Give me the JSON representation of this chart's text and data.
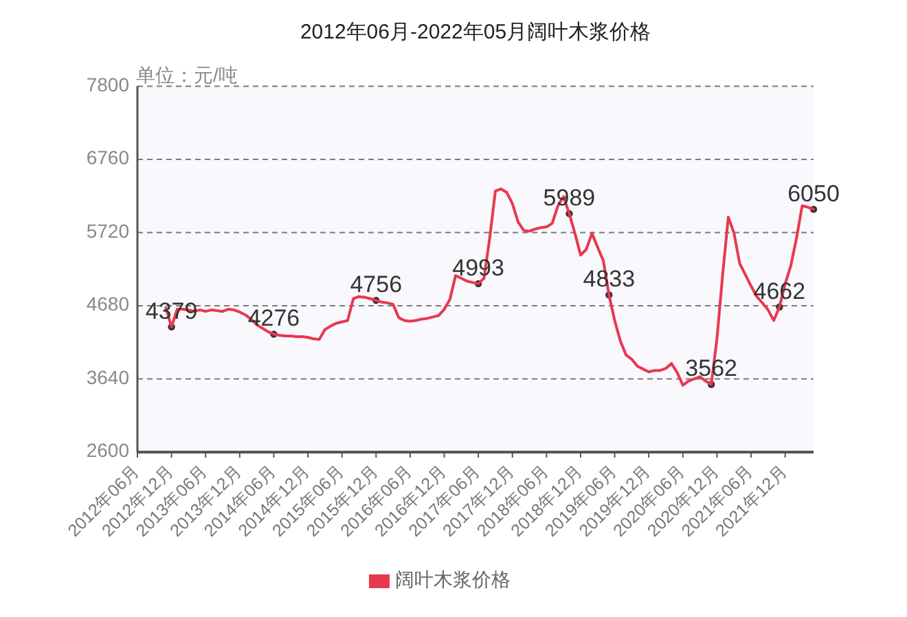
{
  "chart_data": {
    "type": "line",
    "title": "2012年06月-2022年05月阔叶木浆价格",
    "ylabel": "单位：元/吨",
    "categories": [
      "2012年06月",
      null,
      null,
      null,
      null,
      null,
      "2012年12月",
      null,
      null,
      null,
      null,
      null,
      "2013年06月",
      null,
      null,
      null,
      null,
      null,
      "2013年12月",
      null,
      null,
      null,
      null,
      null,
      "2014年06月",
      null,
      null,
      null,
      null,
      null,
      "2014年12月",
      null,
      null,
      null,
      null,
      null,
      "2015年06月",
      null,
      null,
      null,
      null,
      null,
      "2015年12月",
      null,
      null,
      null,
      null,
      null,
      "2016年06月",
      null,
      null,
      null,
      null,
      null,
      "2016年12月",
      null,
      null,
      null,
      null,
      null,
      "2017年06月",
      null,
      null,
      null,
      null,
      null,
      "2017年12月",
      null,
      null,
      null,
      null,
      null,
      "2018年06月",
      null,
      null,
      null,
      null,
      null,
      "2018年12月",
      null,
      null,
      null,
      null,
      null,
      "2019年06月",
      null,
      null,
      null,
      null,
      null,
      "2019年12月",
      null,
      null,
      null,
      null,
      null,
      "2020年06月",
      null,
      null,
      null,
      null,
      null,
      "2020年12月",
      null,
      null,
      null,
      null,
      null,
      "2021年06月",
      null,
      null,
      null,
      null,
      null,
      "2021年12月",
      null,
      null,
      null,
      null,
      null
    ],
    "series": [
      {
        "name": "阔叶木浆价格",
        "color": "#e8384f",
        "values": [
          null,
          null,
          null,
          null,
          null,
          4650,
          4379,
          4630,
          4630,
          4620,
          4600,
          4620,
          4600,
          4620,
          4610,
          4600,
          4630,
          4620,
          4590,
          4550,
          4490,
          4410,
          4360,
          4310,
          4276,
          4260,
          4250,
          4250,
          4240,
          4240,
          4230,
          4210,
          4200,
          4340,
          4390,
          4430,
          4450,
          4470,
          4780,
          4810,
          4800,
          4780,
          4756,
          4730,
          4720,
          4700,
          4510,
          4470,
          4460,
          4470,
          4490,
          4500,
          4520,
          4540,
          4630,
          4770,
          5110,
          5070,
          5030,
          5010,
          4993,
          5070,
          5640,
          6310,
          6340,
          6290,
          6130,
          5870,
          5750,
          5740,
          5770,
          5790,
          5800,
          5850,
          6100,
          6230,
          5989,
          5710,
          5400,
          5480,
          5710,
          5510,
          5320,
          4833,
          4470,
          4180,
          3980,
          3920,
          3820,
          3780,
          3740,
          3760,
          3760,
          3790,
          3860,
          3730,
          3550,
          3610,
          3640,
          3670,
          3610,
          3562,
          4210,
          5120,
          5940,
          5710,
          5280,
          5120,
          4960,
          4810,
          4720,
          4620,
          4470,
          4662,
          4990,
          5250,
          5640,
          6100,
          6080,
          6050
        ],
        "value_labels": [
          null,
          null,
          null,
          null,
          null,
          null,
          "4379",
          null,
          null,
          null,
          null,
          null,
          null,
          null,
          null,
          null,
          null,
          null,
          null,
          null,
          null,
          null,
          null,
          null,
          "4276",
          null,
          null,
          null,
          null,
          null,
          null,
          null,
          null,
          null,
          null,
          null,
          null,
          null,
          null,
          null,
          null,
          null,
          "4756",
          null,
          null,
          null,
          null,
          null,
          null,
          null,
          null,
          null,
          null,
          null,
          null,
          null,
          null,
          null,
          null,
          null,
          "4993",
          null,
          null,
          null,
          null,
          null,
          null,
          null,
          null,
          null,
          null,
          null,
          null,
          null,
          null,
          null,
          "5989",
          null,
          null,
          null,
          null,
          null,
          null,
          "4833",
          null,
          null,
          null,
          null,
          null,
          null,
          null,
          null,
          null,
          null,
          null,
          null,
          null,
          null,
          null,
          null,
          null,
          "3562",
          null,
          null,
          null,
          null,
          null,
          null,
          null,
          null,
          null,
          null,
          null,
          "4662",
          null,
          null,
          null,
          null,
          null,
          "6050"
        ]
      }
    ],
    "ylim": [
      2600,
      7800
    ],
    "yticks": [
      2600,
      3640,
      4680,
      5720,
      6760,
      7800
    ],
    "grid": "y",
    "legend": "bottom"
  }
}
